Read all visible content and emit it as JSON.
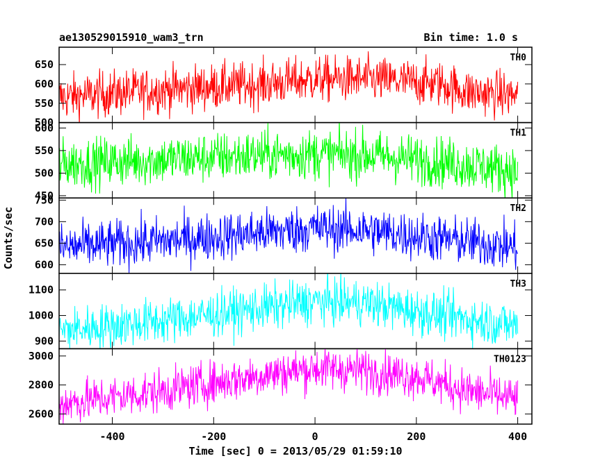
{
  "header": {
    "title": "ae130529015910_wam3_trn",
    "bin_time": "Bin time: 1.0 s"
  },
  "axes": {
    "xlabel": "Time [sec] 0 = 2013/05/29 01:59:10",
    "ylabel": "Counts/sec"
  },
  "chart_data": {
    "type": "line",
    "title": "ae130529015910_wam3_trn",
    "subtitle": "Bin time: 1.0 s",
    "xlabel": "Time [sec] 0 = 2013/05/29 01:59:10",
    "ylabel": "Counts/sec",
    "xlim": [
      -505,
      428
    ],
    "x_ticks": [
      -400,
      -200,
      0,
      200,
      400
    ],
    "x_range": [
      -505,
      400
    ],
    "grid": false,
    "legend": "none",
    "series": [
      {
        "name": "TH0",
        "color": "#ff0000",
        "ylim": [
          500,
          695
        ],
        "y_ticks": [
          500,
          550,
          600,
          650
        ],
        "trend": [
          [
            -505,
            565
          ],
          [
            -300,
            585
          ],
          [
            -100,
            600
          ],
          [
            0,
            612
          ],
          [
            100,
            612
          ],
          [
            250,
            600
          ],
          [
            300,
            580
          ],
          [
            400,
            570
          ]
        ],
        "noise": 30
      },
      {
        "name": "TH1",
        "color": "#00ff00",
        "ylim": [
          445,
          612
        ],
        "y_ticks": [
          450,
          500,
          550,
          600
        ],
        "trend": [
          [
            -505,
            520
          ],
          [
            -300,
            530
          ],
          [
            -100,
            540
          ],
          [
            0,
            542
          ],
          [
            100,
            540
          ],
          [
            250,
            525
          ],
          [
            400,
            505
          ]
        ],
        "noise": 28
      },
      {
        "name": "TH2",
        "color": "#0000ff",
        "ylim": [
          580,
          755
        ],
        "y_ticks": [
          600,
          650,
          700,
          750
        ],
        "trend": [
          [
            -505,
            640
          ],
          [
            -300,
            655
          ],
          [
            -100,
            675
          ],
          [
            0,
            685
          ],
          [
            100,
            680
          ],
          [
            250,
            660
          ],
          [
            400,
            640
          ]
        ],
        "noise": 28
      },
      {
        "name": "TH3",
        "color": "#00ffff",
        "ylim": [
          870,
          1165
        ],
        "y_ticks": [
          900,
          1000,
          1100
        ],
        "trend": [
          [
            -505,
            940
          ],
          [
            -300,
            980
          ],
          [
            -100,
            1030
          ],
          [
            0,
            1055
          ],
          [
            100,
            1050
          ],
          [
            250,
            1000
          ],
          [
            400,
            960
          ]
        ],
        "noise": 45
      },
      {
        "name": "TH0123",
        "color": "#ff00ff",
        "ylim": [
          2530,
          3050
        ],
        "y_ticks": [
          2600,
          2800,
          3000
        ],
        "trend": [
          [
            -505,
            2670
          ],
          [
            -300,
            2760
          ],
          [
            -100,
            2870
          ],
          [
            0,
            2915
          ],
          [
            100,
            2900
          ],
          [
            200,
            2860
          ],
          [
            300,
            2760
          ],
          [
            400,
            2700
          ]
        ],
        "noise": 75
      }
    ]
  }
}
